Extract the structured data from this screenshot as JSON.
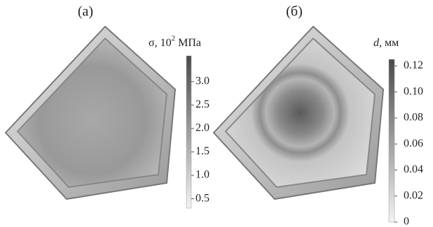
{
  "panels": [
    {
      "label": "(a)",
      "colorbar": {
        "title": {
          "symbol": "σ",
          "base": ", 10",
          "exponent": "2",
          "unit": " МПа"
        },
        "lim": [
          0.3,
          3.55
        ],
        "ticks": [
          {
            "value": 0.5,
            "label": "0.5"
          },
          {
            "value": 1,
            "label": "1.0"
          },
          {
            "value": 1.5,
            "label": "1.5"
          },
          {
            "value": 2,
            "label": "2.0"
          },
          {
            "value": 2.5,
            "label": "2.5"
          },
          {
            "value": 3,
            "label": "3.0"
          }
        ]
      }
    },
    {
      "label": "(б)",
      "colorbar": {
        "title": {
          "symbol": "d",
          "unit": ", мм"
        },
        "lim": [
          0,
          0.125
        ],
        "ticks": [
          0,
          {
            "value": 0.02,
            "label": "0.02"
          },
          {
            "value": 0.04,
            "label": "0.04"
          },
          {
            "value": 0.06,
            "label": "0.06"
          },
          {
            "value": 0.08,
            "label": "0.08"
          },
          {
            "value": 0.1,
            "label": "0.10"
          },
          {
            "value": 0.12,
            "label": "0.12"
          }
        ]
      }
    }
  ]
}
